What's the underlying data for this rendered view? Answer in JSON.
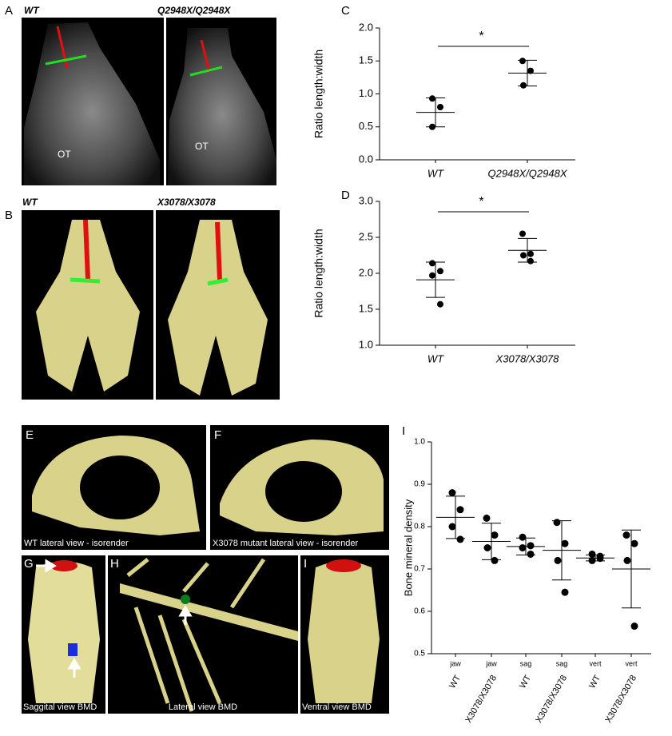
{
  "panels": {
    "A": {
      "label": "A",
      "left": "WT",
      "right": "Q2948X/Q2948X",
      "left_mark": "OT",
      "right_mark": "OT"
    },
    "B": {
      "label": "B",
      "left": "WT",
      "right": "X3078/X3078"
    },
    "E": {
      "label": "E",
      "caption": "WT lateral view - isorender"
    },
    "F": {
      "label": "F",
      "caption": "X3078 mutant lateral view - isorender"
    },
    "G": {
      "label": "G",
      "caption": "Saggital view BMD"
    },
    "H": {
      "label": "H",
      "caption": "Lateral view BMD"
    },
    "I": {
      "label": "I",
      "caption": "Ventral view BMD"
    }
  },
  "chart_data": [
    {
      "type": "dot",
      "panel_label": "C",
      "y_label": "Ratio length:width",
      "annotation": "*",
      "categories": [
        "WT",
        "Q2948X/Q2948X"
      ],
      "points": [
        [
          0.93,
          0.8,
          0.5
        ],
        [
          1.5,
          1.35,
          1.13
        ]
      ],
      "mean": [
        0.72,
        1.315
      ],
      "sd": [
        0.22,
        0.195
      ],
      "ylim": [
        0,
        2.0
      ],
      "yticks": [
        {
          "value": 0,
          "label": "0.0"
        },
        0.5,
        {
          "value": 1,
          "label": "1.0"
        },
        1.5,
        {
          "value": 2,
          "label": "2.0"
        }
      ]
    },
    {
      "type": "dot",
      "panel_label": "D",
      "y_label": "Ratio length:width",
      "annotation": "*",
      "categories": [
        "WT",
        "X3078/X3078"
      ],
      "points": [
        [
          2.14,
          2.03,
          1.97,
          1.57
        ],
        [
          2.55,
          2.27,
          2.25,
          2.17
        ]
      ],
      "mean": [
        1.91,
        2.32
      ],
      "sd": [
        0.245,
        0.165
      ],
      "ylim": [
        1.0,
        3.0
      ],
      "yticks": [
        {
          "value": 1,
          "label": "1.0"
        },
        1.5,
        {
          "value": 2,
          "label": "2.0"
        },
        2.5,
        {
          "value": 3,
          "label": "3.0"
        }
      ]
    },
    {
      "type": "dot",
      "panel_label": "I",
      "y_label": "Bone mineral density",
      "groups": [
        "jaw",
        "jaw",
        "sag",
        "sag",
        "vert",
        "vert"
      ],
      "categories": [
        "WT",
        "X3078/X3078",
        "WT",
        "X3078/X3078",
        "WT",
        "X3078/X3078"
      ],
      "points": [
        [
          0.88,
          0.84,
          0.8,
          0.77
        ],
        [
          0.82,
          0.78,
          0.75,
          0.72
        ],
        [
          0.775,
          0.755,
          0.75,
          0.735
        ],
        [
          0.81,
          0.76,
          0.72,
          0.645
        ],
        [
          0.735,
          0.73,
          0.72,
          0.725
        ],
        [
          0.78,
          0.76,
          0.72,
          0.565
        ]
      ],
      "mean": [
        0.822,
        0.765,
        0.753,
        0.744,
        0.726,
        0.7
      ],
      "sd": [
        0.05,
        0.043,
        0.02,
        0.07,
        0.007,
        0.092
      ],
      "ylim": [
        0.5,
        1.0
      ],
      "yticks": [
        0.5,
        0.6,
        0.7,
        0.8,
        0.9,
        {
          "value": 1,
          "label": "1.0"
        }
      ]
    }
  ]
}
